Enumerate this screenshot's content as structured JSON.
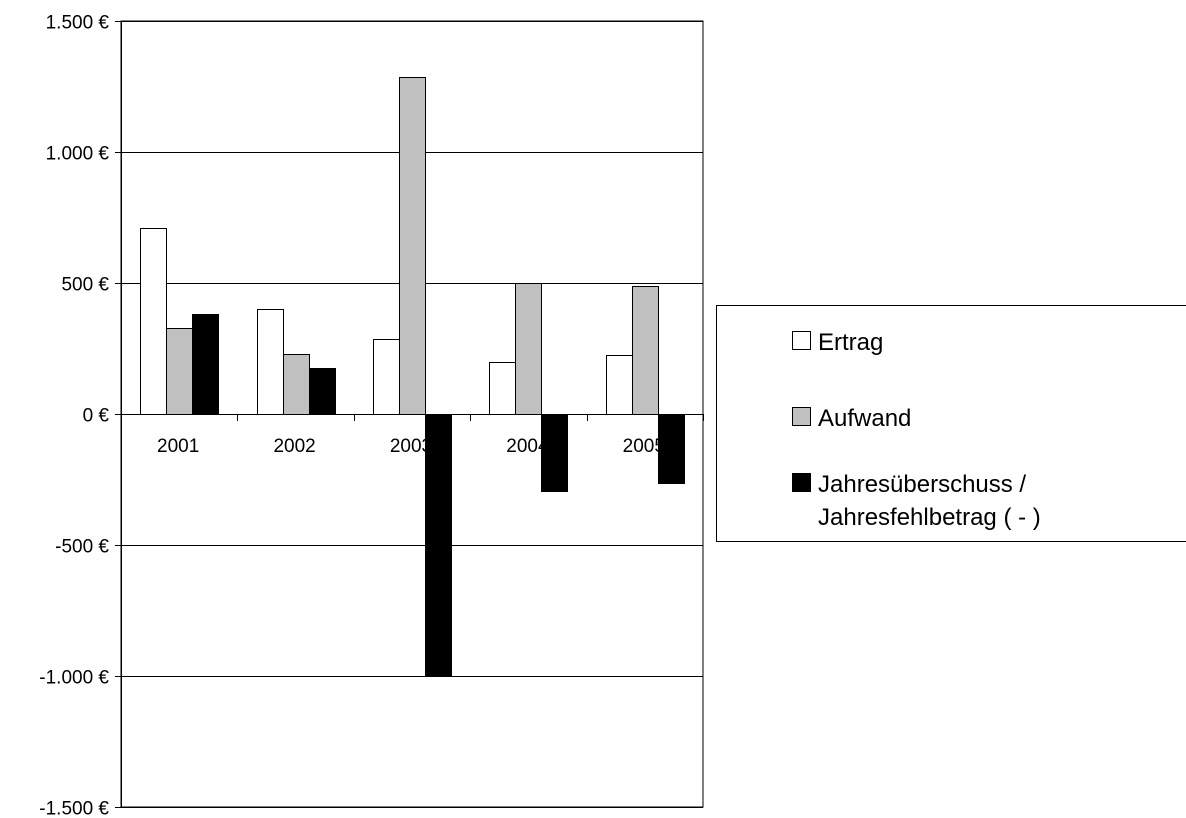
{
  "chart_data": {
    "type": "bar",
    "title": "",
    "xlabel": "",
    "ylabel": "",
    "categories": [
      "2001",
      "2002",
      "2003",
      "2004",
      "2005"
    ],
    "series": [
      {
        "name": "Ertrag",
        "values": [
          710,
          400,
          285,
          200,
          225
        ],
        "color": "#ffffff"
      },
      {
        "name": "Aufwand",
        "values": [
          330,
          230,
          1285,
          500,
          490
        ],
        "color": "#c0c0c0"
      },
      {
        "name": "Jahresüberschuss / Jahresfehlbetrag ( - )",
        "values": [
          380,
          175,
          -1000,
          -295,
          -265
        ],
        "color": "#000000"
      }
    ],
    "ylim": [
      -1500,
      1500
    ],
    "yticks": [
      1500,
      1000,
      500,
      0,
      -500,
      -1000,
      -1500
    ],
    "ytick_labels": [
      "1.500 €",
      "1.000 €",
      "500 €",
      "0 €",
      "-500 €",
      "-1.000 €",
      "-1.500 €"
    ],
    "grid": true,
    "legend_position": "right"
  }
}
